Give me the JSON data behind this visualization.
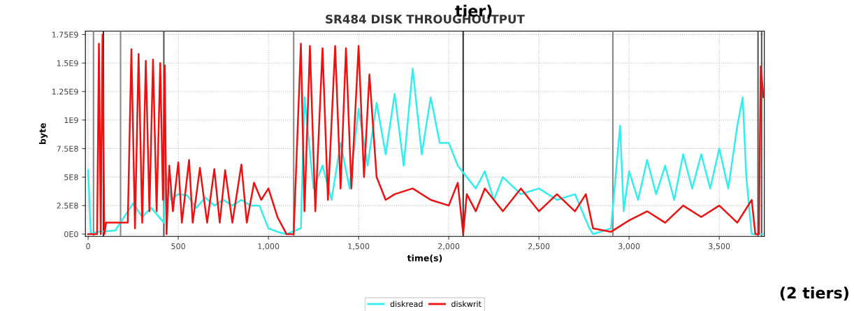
{
  "chart_data": {
    "type": "line",
    "title": "SR484 DISK THROUGHOUTPUT",
    "xlabel": "time(s)",
    "ylabel": "byte",
    "annotations": [
      "tier)",
      "(2 tiers)"
    ],
    "xlim": [
      -15,
      3750
    ],
    "xticks": [
      {
        "value": 0,
        "label": "0"
      },
      {
        "value": 500,
        "label": "500"
      },
      {
        "value": 1000,
        "label": "1,000"
      },
      {
        "value": 1500,
        "label": "1,500"
      },
      {
        "value": 2000,
        "label": "2,000"
      },
      {
        "value": 2500,
        "label": "2,500"
      },
      {
        "value": 3000,
        "label": "3,000"
      },
      {
        "value": 3500,
        "label": "3,500"
      }
    ],
    "ylim": [
      -20000000,
      1780000000
    ],
    "yticks": [
      {
        "value": 0,
        "label": "0E0"
      },
      {
        "value": 250000000,
        "label": "2.5E8"
      },
      {
        "value": 500000000,
        "label": "5E8"
      },
      {
        "value": 750000000,
        "label": "7.5E8"
      },
      {
        "value": 1000000000,
        "label": "1E9"
      },
      {
        "value": 1250000000,
        "label": "1.25E9"
      },
      {
        "value": 1500000000,
        "label": "1.5E9"
      },
      {
        "value": 1750000000,
        "label": "1.75E9"
      }
    ],
    "grid": true,
    "legend": "bottom",
    "marker": "none",
    "line_style": "solid",
    "ref_lines": [
      {
        "axis": "x",
        "value": 30,
        "color": "#888888"
      },
      {
        "axis": "x",
        "value": 85,
        "color": "#333333"
      },
      {
        "axis": "x",
        "value": 180,
        "color": "#888888"
      },
      {
        "axis": "x",
        "value": 420,
        "color": "#555555"
      },
      {
        "axis": "x",
        "value": 1140,
        "color": "#888888"
      },
      {
        "axis": "x",
        "value": 2080,
        "color": "#333333"
      },
      {
        "axis": "x",
        "value": 2910,
        "color": "#888888"
      },
      {
        "axis": "x",
        "value": 3715,
        "color": "#555555"
      },
      {
        "axis": "x",
        "value": 3735,
        "color": "#555555"
      }
    ],
    "series": [
      {
        "name": "diskread",
        "color": "#33eeee",
        "x": [
          0,
          15,
          50,
          150,
          250,
          300,
          350,
          420,
          430,
          460,
          500,
          550,
          600,
          650,
          700,
          750,
          800,
          850,
          900,
          950,
          1000,
          1050,
          1100,
          1180,
          1200,
          1250,
          1300,
          1350,
          1400,
          1450,
          1500,
          1550,
          1600,
          1650,
          1700,
          1750,
          1800,
          1850,
          1900,
          1950,
          2000,
          2050,
          2100,
          2150,
          2200,
          2250,
          2300,
          2400,
          2500,
          2600,
          2700,
          2780,
          2800,
          2900,
          2950,
          2970,
          3000,
          3050,
          3100,
          3150,
          3200,
          3250,
          3300,
          3350,
          3400,
          3450,
          3500,
          3550,
          3600,
          3630,
          3650,
          3680,
          3720,
          3740
        ],
        "values": [
          560000000,
          0,
          20000000,
          30000000,
          270000000,
          150000000,
          230000000,
          100000000,
          550000000,
          300000000,
          350000000,
          340000000,
          230000000,
          320000000,
          250000000,
          300000000,
          250000000,
          300000000,
          250000000,
          250000000,
          50000000,
          20000000,
          0,
          50000000,
          1200000000,
          400000000,
          600000000,
          300000000,
          800000000,
          400000000,
          1100000000,
          600000000,
          1150000000,
          700000000,
          1230000000,
          600000000,
          1450000000,
          700000000,
          1200000000,
          800000000,
          800000000,
          600000000,
          500000000,
          400000000,
          550000000,
          300000000,
          500000000,
          350000000,
          400000000,
          300000000,
          350000000,
          50000000,
          0,
          50000000,
          950000000,
          200000000,
          550000000,
          300000000,
          650000000,
          350000000,
          600000000,
          300000000,
          700000000,
          400000000,
          700000000,
          400000000,
          750000000,
          400000000,
          950000000,
          1200000000,
          500000000,
          0,
          0,
          0
        ]
      },
      {
        "name": "diskwrit",
        "color": "#ee1111",
        "x": [
          0,
          30,
          50,
          60,
          70,
          80,
          90,
          100,
          150,
          220,
          240,
          260,
          280,
          300,
          320,
          340,
          360,
          380,
          400,
          415,
          425,
          435,
          450,
          470,
          500,
          520,
          560,
          580,
          620,
          660,
          700,
          730,
          760,
          800,
          850,
          880,
          920,
          960,
          1000,
          1050,
          1100,
          1140,
          1180,
          1200,
          1230,
          1260,
          1300,
          1330,
          1370,
          1400,
          1430,
          1460,
          1500,
          1530,
          1560,
          1600,
          1650,
          1700,
          1800,
          1900,
          2000,
          2050,
          2080,
          2100,
          2150,
          2200,
          2300,
          2400,
          2500,
          2600,
          2700,
          2760,
          2800,
          2900,
          3000,
          3100,
          3200,
          3300,
          3400,
          3500,
          3600,
          3680,
          3700,
          3720,
          3730,
          3745
        ],
        "values": [
          0,
          0,
          0,
          1670000000,
          0,
          1750000000,
          0,
          100000000,
          100000000,
          100000000,
          1620000000,
          50000000,
          1580000000,
          100000000,
          1520000000,
          200000000,
          1530000000,
          200000000,
          1500000000,
          300000000,
          1480000000,
          0,
          600000000,
          200000000,
          630000000,
          100000000,
          650000000,
          100000000,
          580000000,
          100000000,
          570000000,
          100000000,
          560000000,
          100000000,
          610000000,
          100000000,
          450000000,
          300000000,
          400000000,
          150000000,
          0,
          0,
          1670000000,
          200000000,
          1650000000,
          200000000,
          1630000000,
          300000000,
          1650000000,
          400000000,
          1630000000,
          400000000,
          1650000000,
          500000000,
          1400000000,
          500000000,
          300000000,
          350000000,
          400000000,
          300000000,
          250000000,
          450000000,
          0,
          350000000,
          200000000,
          400000000,
          200000000,
          400000000,
          200000000,
          350000000,
          200000000,
          350000000,
          50000000,
          20000000,
          120000000,
          200000000,
          100000000,
          250000000,
          150000000,
          250000000,
          100000000,
          300000000,
          0,
          0,
          1470000000,
          1200000000
        ]
      }
    ]
  }
}
